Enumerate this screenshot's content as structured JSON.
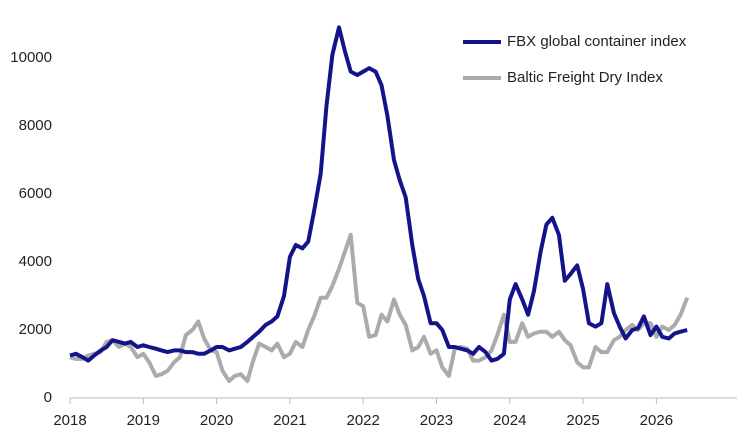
{
  "chart_data": {
    "type": "line",
    "x": [
      2018.0,
      2018.08,
      2018.17,
      2018.25,
      2018.33,
      2018.42,
      2018.5,
      2018.58,
      2018.67,
      2018.75,
      2018.83,
      2018.92,
      2019.0,
      2019.08,
      2019.17,
      2019.25,
      2019.33,
      2019.42,
      2019.5,
      2019.58,
      2019.67,
      2019.75,
      2019.83,
      2019.92,
      2020.0,
      2020.08,
      2020.17,
      2020.25,
      2020.33,
      2020.42,
      2020.5,
      2020.58,
      2020.67,
      2020.75,
      2020.83,
      2020.92,
      2021.0,
      2021.08,
      2021.17,
      2021.25,
      2021.33,
      2021.42,
      2021.5,
      2021.58,
      2021.67,
      2021.75,
      2021.83,
      2021.92,
      2022.0,
      2022.08,
      2022.17,
      2022.25,
      2022.33,
      2022.42,
      2022.5,
      2022.58,
      2022.67,
      2022.75,
      2022.83,
      2022.92,
      2023.0,
      2023.08,
      2023.17,
      2023.25,
      2023.33,
      2023.42,
      2023.5,
      2023.58,
      2023.67,
      2023.75,
      2023.83,
      2023.92,
      2024.0,
      2024.08,
      2024.17,
      2024.25,
      2024.33,
      2024.42,
      2024.5,
      2024.58,
      2024.67,
      2024.75,
      2024.83,
      2024.92,
      2025.0,
      2025.08,
      2025.17,
      2025.25,
      2025.33,
      2025.42,
      2025.5,
      2025.58,
      2025.67,
      2025.75,
      2025.83,
      2025.92,
      2026.0,
      2026.08,
      2026.17,
      2026.25,
      2026.33,
      2026.42
    ],
    "series": [
      {
        "name": "FBX global container index",
        "color": "#14148a",
        "values": [
          1250,
          1300,
          1200,
          1100,
          1250,
          1400,
          1500,
          1700,
          1650,
          1600,
          1650,
          1500,
          1550,
          1500,
          1450,
          1400,
          1350,
          1400,
          1400,
          1350,
          1350,
          1300,
          1300,
          1400,
          1500,
          1500,
          1400,
          1450,
          1500,
          1650,
          1800,
          1950,
          2150,
          2250,
          2400,
          3000,
          4150,
          4500,
          4400,
          4600,
          5500,
          6600,
          8600,
          10100,
          10900,
          10200,
          9600,
          9500,
          9600,
          9700,
          9600,
          9200,
          8300,
          7000,
          6400,
          5900,
          4500,
          3500,
          3000,
          2200,
          2200,
          2000,
          1500,
          1500,
          1450,
          1400,
          1300,
          1500,
          1350,
          1100,
          1150,
          1300,
          2900,
          3350,
          2900,
          2450,
          3150,
          4300,
          5100,
          5300,
          4800,
          3450,
          3650,
          3900,
          3200,
          2200,
          2100,
          2200,
          3350,
          2500,
          2100,
          1750,
          2000,
          2050,
          2400,
          1850,
          2100,
          1800,
          1750,
          1900,
          1950,
          2000
        ]
      },
      {
        "name": "Baltic Freight Dry Index",
        "color": "#ababab",
        "values": [
          1200,
          1150,
          1150,
          1250,
          1300,
          1350,
          1650,
          1700,
          1500,
          1600,
          1500,
          1200,
          1300,
          1050,
          650,
          700,
          800,
          1050,
          1200,
          1850,
          2000,
          2250,
          1750,
          1400,
          1350,
          800,
          500,
          650,
          700,
          500,
          1100,
          1600,
          1500,
          1400,
          1600,
          1200,
          1300,
          1650,
          1500,
          2000,
          2400,
          2950,
          2950,
          3300,
          3800,
          4300,
          4800,
          2800,
          2700,
          1800,
          1850,
          2450,
          2250,
          2900,
          2450,
          2150,
          1400,
          1500,
          1800,
          1300,
          1400,
          900,
          650,
          1450,
          1500,
          1450,
          1100,
          1100,
          1200,
          1400,
          1850,
          2450,
          1650,
          1650,
          2200,
          1800,
          1900,
          1950,
          1950,
          1800,
          1950,
          1700,
          1550,
          1050,
          900,
          900,
          1500,
          1350,
          1350,
          1700,
          1800,
          2000,
          2150,
          2000,
          2200,
          2200,
          1800,
          2100,
          2000,
          2150,
          2450,
          2950
        ]
      }
    ],
    "xlim": [
      2018,
      2027.1
    ],
    "xticks": [
      2018,
      2019,
      2020,
      2021,
      2022,
      2023,
      2024,
      2025,
      2026
    ],
    "ylim": [
      0,
      11000
    ],
    "yticks": [
      0,
      2000,
      4000,
      6000,
      8000,
      10000
    ],
    "legend": "top-right"
  }
}
